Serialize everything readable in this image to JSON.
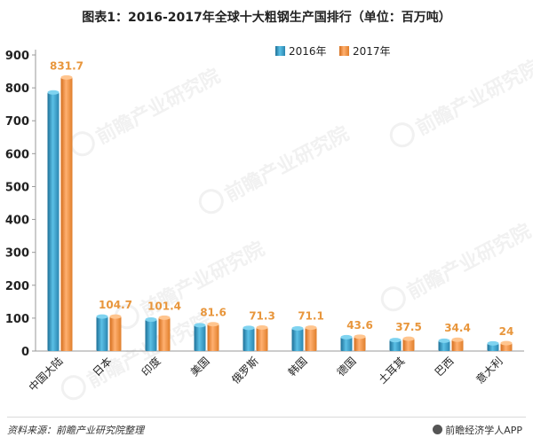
{
  "title": "图表1：2016-2017年全球十大粗钢生产国排行（单位：百万吨）",
  "watermark": "前瞻产业研究院",
  "source_note": "资料来源：前瞻产业研究院整理",
  "brand_note": "前瞻经济学人APP",
  "chart_data": {
    "type": "bar",
    "title": "图表1：2016-2017年全球十大粗钢生产国排行（单位：百万吨）",
    "categories": [
      "中国大陆",
      "日本",
      "印度",
      "美国",
      "俄罗斯",
      "韩国",
      "德国",
      "土耳其",
      "巴西",
      "意大利"
    ],
    "series": [
      {
        "name": "2016年",
        "color": "#3aa0c8",
        "values": [
          786.0,
          104.8,
          95.5,
          78.5,
          70.5,
          68.6,
          42.1,
          33.2,
          31.3,
          23.3
        ]
      },
      {
        "name": "2017年",
        "color": "#f0923a",
        "values": [
          831.7,
          104.7,
          101.4,
          81.6,
          71.3,
          71.1,
          43.6,
          37.5,
          34.4,
          24
        ]
      }
    ],
    "data_labels_series": "2017年",
    "data_labels": [
      "831.7",
      "104.7",
      "101.4",
      "81.6",
      "71.3",
      "71.1",
      "43.6",
      "37.5",
      "34.4",
      "24"
    ],
    "yticks": [
      "0",
      "100",
      "200",
      "300",
      "400",
      "500",
      "600",
      "700",
      "800",
      "900"
    ],
    "ylim": [
      0,
      900
    ],
    "legend_position": "top-right",
    "grid": false,
    "label_color": "#e8963c"
  }
}
